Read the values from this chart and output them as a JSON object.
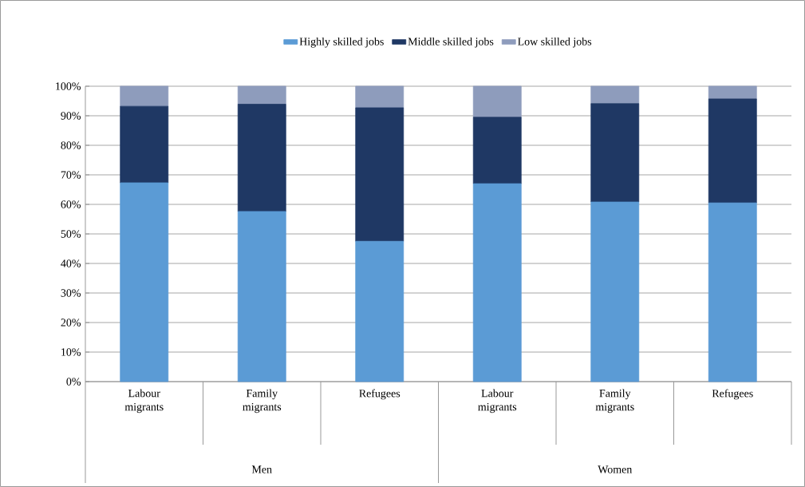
{
  "chart_data": {
    "type": "bar",
    "stacked": true,
    "categories": [
      "Labour migrants",
      "Family migrants",
      "Refugees",
      "Labour migrants",
      "Family migrants",
      "Refugees"
    ],
    "series": [
      {
        "name": "Highly skilled jobs",
        "color": "#5b9bd5",
        "values": [
          67.3,
          57.6,
          47.5,
          67.0,
          60.8,
          60.5
        ]
      },
      {
        "name": "Middle skilled jobs",
        "color": "#1f3864",
        "values": [
          25.9,
          36.3,
          45.2,
          22.5,
          33.3,
          35.2
        ]
      },
      {
        "name": "Low skilled jobs",
        "color": "#8e9cbc",
        "values": [
          6.8,
          6.1,
          7.3,
          10.5,
          5.9,
          4.3
        ]
      }
    ],
    "annotations": [
      "Men",
      "Women"
    ],
    "ylim": [
      0,
      100
    ],
    "yticks": [
      {
        "value": 0,
        "label": "0%"
      },
      {
        "value": 10,
        "label": "10%"
      },
      {
        "value": 20,
        "label": "20%"
      },
      {
        "value": 30,
        "label": "30%"
      },
      {
        "value": 40,
        "label": "40%"
      },
      {
        "value": 50,
        "label": "50%"
      },
      {
        "value": 60,
        "label": "60%"
      },
      {
        "value": 70,
        "label": "70%"
      },
      {
        "value": 80,
        "label": "80%"
      },
      {
        "value": 90,
        "label": "90%"
      },
      {
        "value": 100,
        "label": "100%"
      }
    ],
    "grid": "y",
    "legend": "top"
  }
}
